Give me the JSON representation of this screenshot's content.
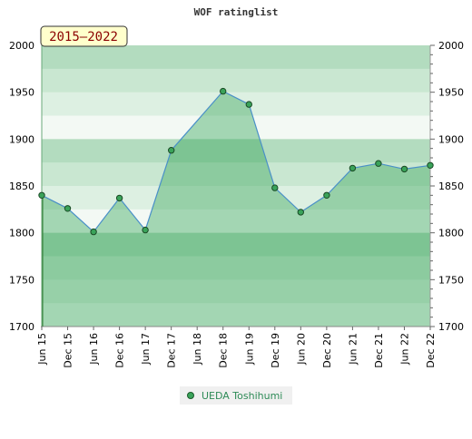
{
  "chart_data": {
    "type": "area",
    "title": "WOF ratinglist",
    "range_label": "2015–2022",
    "ylim": [
      1700,
      2000
    ],
    "y_ticks": [
      1700,
      1750,
      1800,
      1850,
      1900,
      1950,
      2000
    ],
    "x_labels": [
      "Jun 15",
      "Dec 15",
      "Jun 16",
      "Dec 16",
      "Jun 17",
      "Dec 17",
      "Jun 18",
      "Dec 18",
      "Jun 19",
      "Dec 19",
      "Jun 20",
      "Dec 20",
      "Jun 21",
      "Dec 21",
      "Jun 22",
      "Dec 22"
    ],
    "series": [
      {
        "name": "UEDA Toshihumi",
        "values": [
          1840,
          1826,
          1801,
          1837,
          1803,
          1888,
          null,
          1951,
          1937,
          1848,
          1822,
          1840,
          1869,
          1874,
          1868,
          1872
        ]
      }
    ],
    "legend_position": "bottom-center",
    "colors": {
      "line": "#4a90c8",
      "marker_fill": "#3aa35a",
      "area_fill": "#5cb86a",
      "legend_text": "#2e8b57",
      "range_label_bg": "#ffffcc",
      "range_label_text": "#8b0000"
    }
  }
}
